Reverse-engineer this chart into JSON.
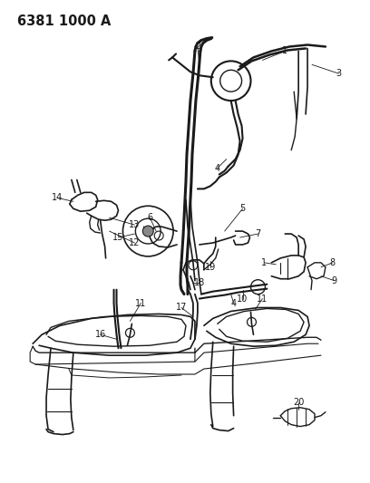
{
  "title": "6381 1000 A",
  "bg_color": "#ffffff",
  "line_color": "#1a1a1a",
  "label_color": "#1a1a1a",
  "label_fontsize": 7.0,
  "title_fontsize": 10.5,
  "fig_width": 4.08,
  "fig_height": 5.33,
  "dpi": 100
}
